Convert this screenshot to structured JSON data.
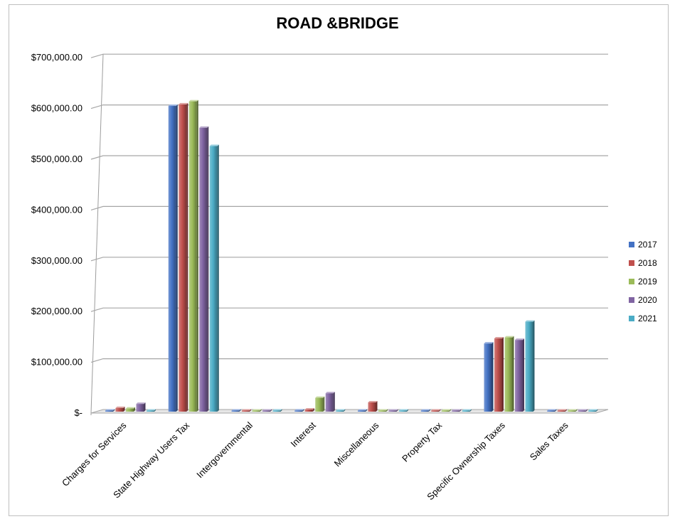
{
  "chart_data": {
    "type": "bar",
    "title": "ROAD &BRIDGE",
    "xlabel": "",
    "ylabel": "",
    "ylim": [
      0,
      700000
    ],
    "y_ticks": [
      "$-",
      "$100,000.00",
      "$200,000.00",
      "$300,000.00",
      "$400,000.00",
      "$500,000.00",
      "$600,000.00",
      "$700,000.00"
    ],
    "categories": [
      "Charges for Services",
      "State Highway Users Tax",
      "Intergovernmental",
      "Interest",
      "Miscellaneous",
      "Property Tax",
      "Specific Ownership Taxes",
      "Sales Taxes"
    ],
    "series": [
      {
        "name": "2017",
        "color": "#4472c4",
        "values": [
          4000,
          605000,
          300,
          5000,
          300,
          300,
          137000,
          300
        ]
      },
      {
        "name": "2018",
        "color": "#c0504d",
        "values": [
          10000,
          608000,
          300,
          7000,
          21000,
          300,
          147000,
          300
        ]
      },
      {
        "name": "2019",
        "color": "#9bbb59",
        "values": [
          9000,
          614000,
          300,
          30000,
          3000,
          300,
          149000,
          300
        ]
      },
      {
        "name": "2020",
        "color": "#8064a2",
        "values": [
          18000,
          562000,
          300,
          39000,
          3000,
          300,
          144000,
          300
        ]
      },
      {
        "name": "2021",
        "color": "#4bacc6",
        "values": [
          2000,
          526000,
          5000,
          2000,
          300,
          300,
          180000,
          300
        ]
      }
    ],
    "grid": true,
    "legend_position": "right"
  }
}
